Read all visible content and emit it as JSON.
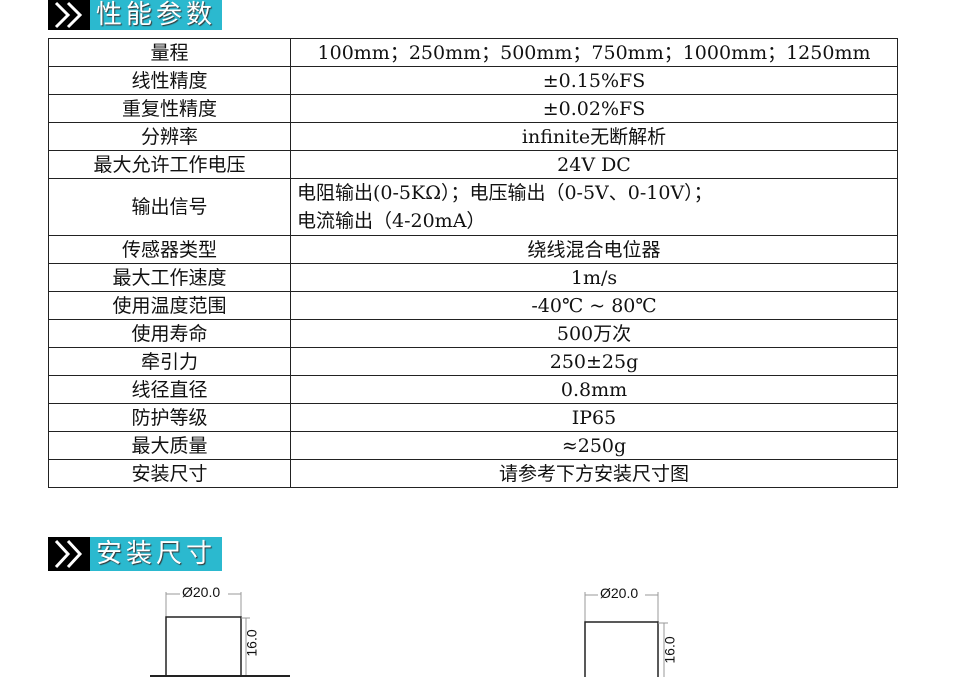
{
  "sections": {
    "specs_title": "性能参数",
    "dims_title": "安装尺寸"
  },
  "colors": {
    "accent": "#2bb9cf",
    "header_block": "#000000"
  },
  "specs": [
    {
      "label": "量程",
      "value": "100mm；250mm；500mm；750mm；1000mm；1250mm"
    },
    {
      "label": "线性精度",
      "value": "±0.15%FS"
    },
    {
      "label": "重复性精度",
      "value": "±0.02%FS"
    },
    {
      "label": "分辨率",
      "value": "infinite无断解析"
    },
    {
      "label": "最大允许工作电压",
      "value": "24V DC"
    },
    {
      "label": "输出信号",
      "value": "电阻输出(0-5KΩ）；电压输出（0-5V、0-10V）；",
      "value2": "电流输出（4-20mA）"
    },
    {
      "label": "传感器类型",
      "value": "绕线混合电位器"
    },
    {
      "label": "最大工作速度",
      "value": "1m/s"
    },
    {
      "label": "使用温度范围",
      "value": "-40℃ ~ 80℃"
    },
    {
      "label": "使用寿命",
      "value": "500万次"
    },
    {
      "label": "牵引力",
      "value": "250±25g"
    },
    {
      "label": "线径直径",
      "value": "0.8mm"
    },
    {
      "label": "防护等级",
      "value": "IP65"
    },
    {
      "label": "最大质量",
      "value": "≈250g"
    },
    {
      "label": "安装尺寸",
      "value": "请参考下方安装尺寸图"
    }
  ],
  "drawings": {
    "diameter": "Ø20.0",
    "height": "16.0"
  }
}
